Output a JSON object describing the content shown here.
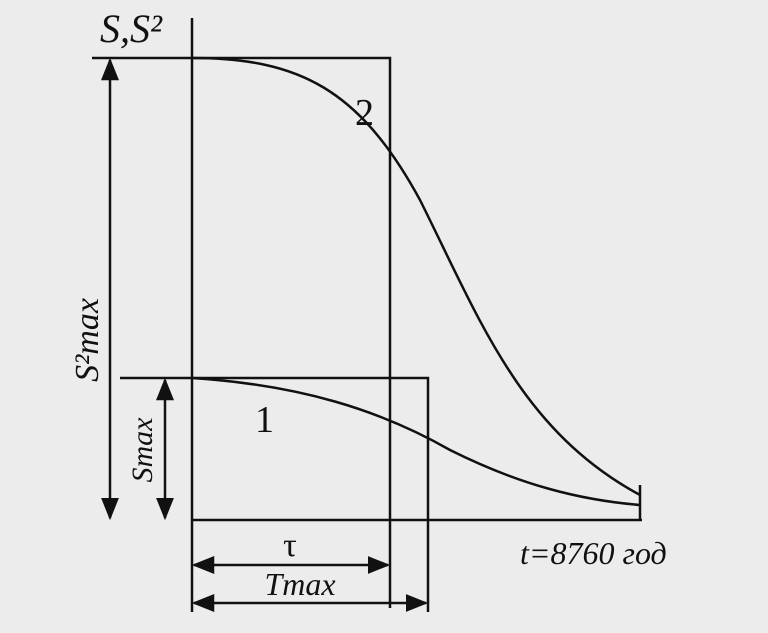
{
  "axis": {
    "y_label": "S,S²"
  },
  "curves": [
    {
      "label": "2"
    },
    {
      "label": "1"
    }
  ],
  "dimensions": {
    "s2max": "S²max",
    "smax": "Smax",
    "tau": "τ",
    "tmax": "Tmax"
  },
  "x_end_label": "t=8760 год"
}
